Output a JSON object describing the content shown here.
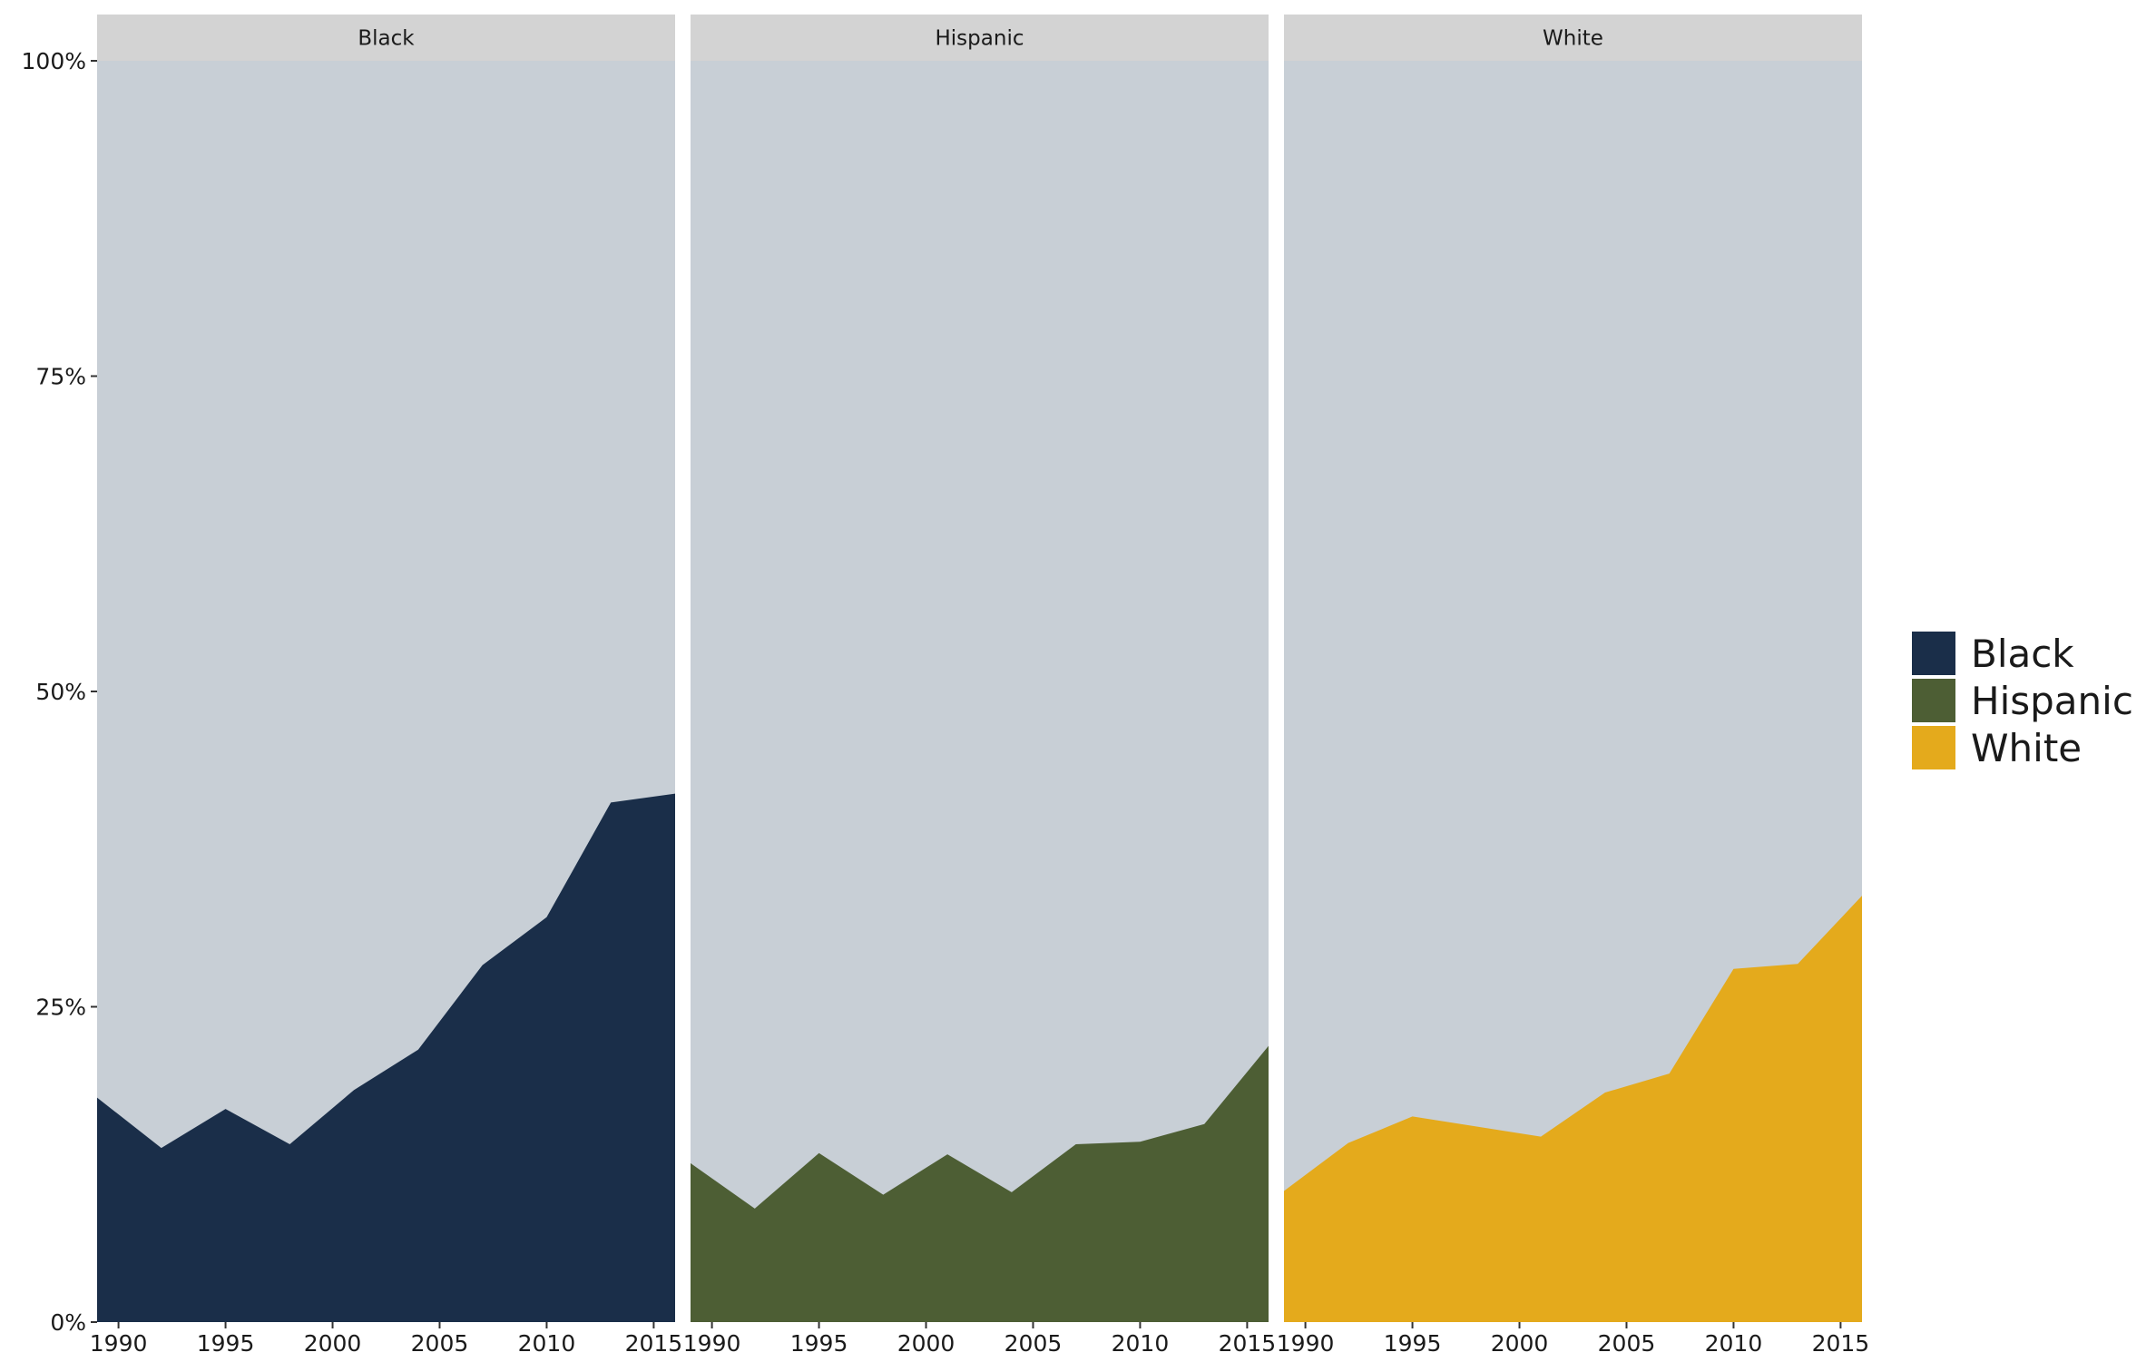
{
  "chart_data": {
    "type": "area",
    "facet_by": "series",
    "x": [
      1989,
      1992,
      1995,
      1998,
      2001,
      2004,
      2007,
      2010,
      2013,
      2016
    ],
    "xticks": [
      1990,
      1995,
      2000,
      2005,
      2010,
      2015
    ],
    "xlim": [
      1989,
      2016
    ],
    "ylim": [
      0,
      1
    ],
    "yticks": [
      0,
      0.25,
      0.5,
      0.75,
      1
    ],
    "ytick_labels": [
      "0%",
      "25%",
      "50%",
      "75%",
      "100%"
    ],
    "background_fill": "#c8cfd6",
    "strip_fill": "#d3d3d3",
    "grid": false,
    "legend_position": "right",
    "series": [
      {
        "name": "Black",
        "color": "#1a2e49",
        "values": [
          0.178,
          0.138,
          0.169,
          0.141,
          0.184,
          0.216,
          0.283,
          0.321,
          0.412,
          0.419
        ]
      },
      {
        "name": "Hispanic",
        "color": "#4d5e34",
        "values": [
          0.126,
          0.09,
          0.134,
          0.101,
          0.133,
          0.103,
          0.141,
          0.143,
          0.157,
          0.219
        ]
      },
      {
        "name": "White",
        "color": "#e4aa1c",
        "values": [
          0.104,
          0.142,
          0.163,
          0.155,
          0.147,
          0.182,
          0.197,
          0.28,
          0.284,
          0.338
        ]
      }
    ]
  }
}
